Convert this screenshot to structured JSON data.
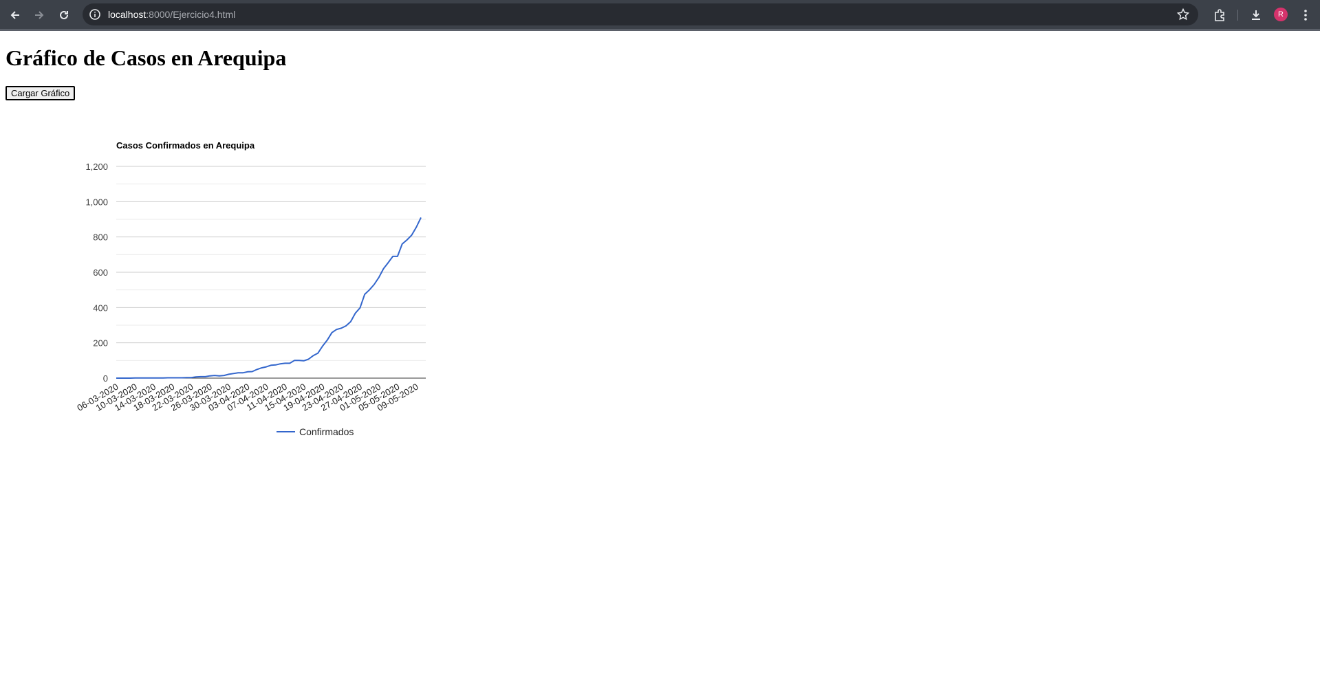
{
  "browser": {
    "url_host": "localhost",
    "url_rest": ":8000/Ejercicio4.html",
    "avatar_initial": "R",
    "avatar_color": "#d6336c"
  },
  "page": {
    "title": "Gráfico de Casos en Arequipa",
    "load_button": "Cargar Gráfico"
  },
  "chart_data": {
    "type": "line",
    "title": "Casos Confirmados en Arequipa",
    "xlabel": "",
    "ylabel": "",
    "ylim": [
      0,
      1200
    ],
    "y_ticks": [
      "0",
      "200",
      "400",
      "600",
      "800",
      "1,000",
      "1,200"
    ],
    "x_tick_labels": [
      "06-03-2020",
      "10-03-2020",
      "14-03-2020",
      "18-03-2020",
      "22-03-2020",
      "26-03-2020",
      "30-03-2020",
      "03-04-2020",
      "07-04-2020",
      "11-04-2020",
      "15-04-2020",
      "19-04-2020",
      "23-04-2020",
      "27-04-2020",
      "01-05-2020",
      "05-05-2020",
      "09-05-2020"
    ],
    "grid": true,
    "legend_position": "bottom",
    "series": [
      {
        "name": "Confirmados",
        "color": "#3366cc",
        "x": [
          "06-03-2020",
          "07-03-2020",
          "08-03-2020",
          "09-03-2020",
          "10-03-2020",
          "11-03-2020",
          "12-03-2020",
          "13-03-2020",
          "14-03-2020",
          "15-03-2020",
          "16-03-2020",
          "17-03-2020",
          "18-03-2020",
          "19-03-2020",
          "20-03-2020",
          "21-03-2020",
          "22-03-2020",
          "23-03-2020",
          "24-03-2020",
          "25-03-2020",
          "26-03-2020",
          "27-03-2020",
          "28-03-2020",
          "29-03-2020",
          "30-03-2020",
          "31-03-2020",
          "01-04-2020",
          "02-04-2020",
          "03-04-2020",
          "04-04-2020",
          "05-04-2020",
          "06-04-2020",
          "07-04-2020",
          "08-04-2020",
          "09-04-2020",
          "10-04-2020",
          "11-04-2020",
          "12-04-2020",
          "13-04-2020",
          "14-04-2020",
          "15-04-2020",
          "16-04-2020",
          "17-04-2020",
          "18-04-2020",
          "19-04-2020",
          "20-04-2020",
          "21-04-2020",
          "22-04-2020",
          "23-04-2020",
          "24-04-2020",
          "25-04-2020",
          "26-04-2020",
          "27-04-2020",
          "28-04-2020",
          "29-04-2020",
          "30-04-2020",
          "01-05-2020",
          "02-05-2020",
          "03-05-2020",
          "04-05-2020",
          "05-05-2020",
          "06-05-2020",
          "07-05-2020",
          "08-05-2020",
          "09-05-2020",
          "10-05-2020"
        ],
        "values": [
          0,
          0,
          0,
          0,
          1,
          1,
          1,
          1,
          1,
          1,
          1,
          2,
          2,
          2,
          2,
          3,
          3,
          7,
          8,
          8,
          13,
          15,
          13,
          15,
          22,
          26,
          30,
          30,
          36,
          37,
          49,
          58,
          64,
          73,
          75,
          81,
          84,
          84,
          100,
          100,
          98,
          107,
          127,
          141,
          181,
          215,
          258,
          276,
          283,
          296,
          320,
          368,
          398,
          475,
          500,
          530,
          570,
          620,
          654,
          690,
          690,
          760,
          783,
          810,
          855,
          910
        ]
      }
    ]
  }
}
